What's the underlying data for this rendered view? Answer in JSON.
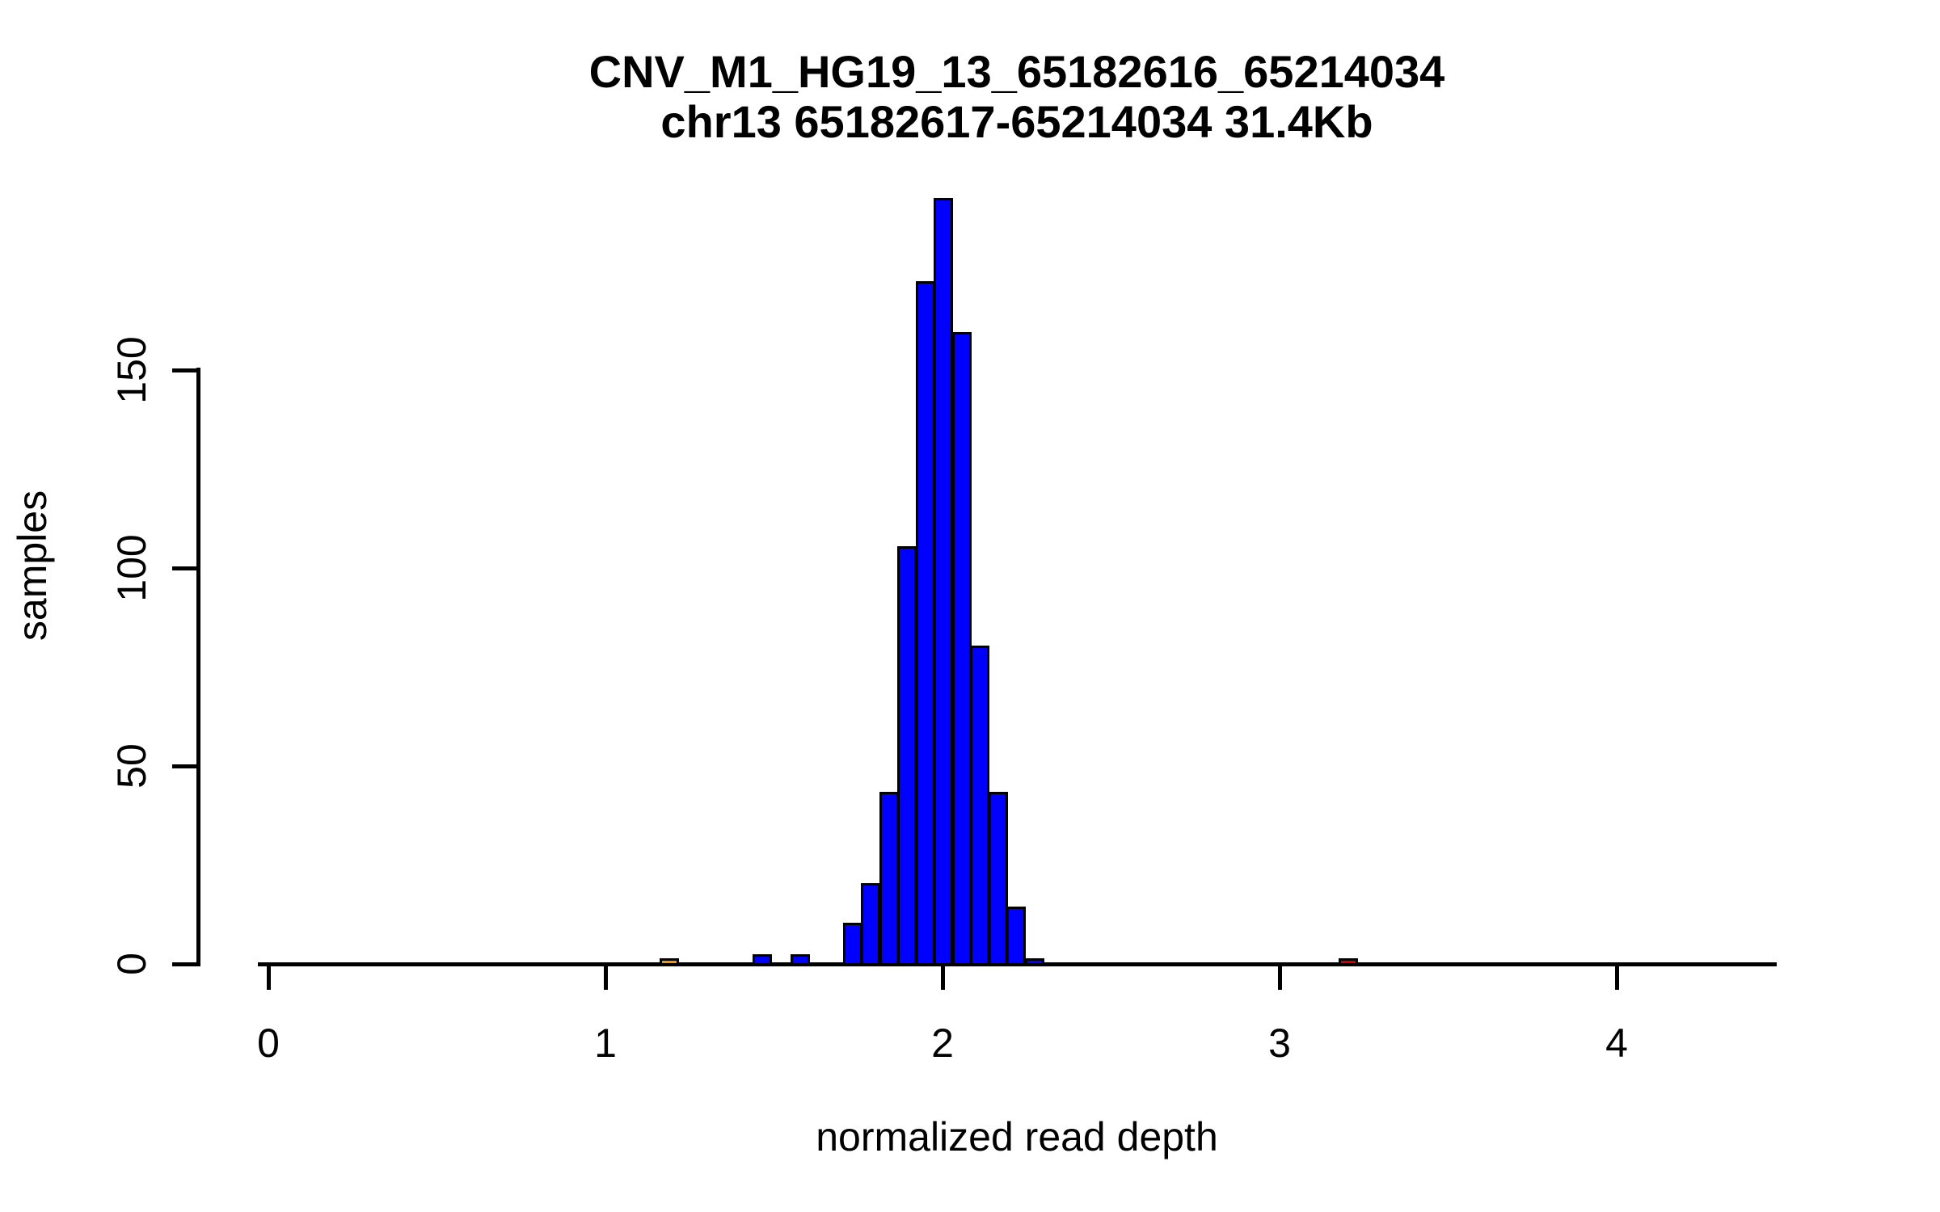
{
  "page": {
    "background": "#FFFFFF"
  },
  "chart_data": {
    "type": "bar",
    "subtype": "histogram",
    "title_line1": "CNV_M1_HG19_13_65182616_65214034",
    "title_line2": "chr13 65182617-65214034 31.4Kb",
    "xlabel": "normalized read depth",
    "ylabel": "samples",
    "x_tick_labels": [
      "0",
      "1",
      "2",
      "3",
      "4"
    ],
    "x_tick_values": [
      0,
      1,
      2,
      3,
      4
    ],
    "y_tick_labels": [
      "0",
      "50",
      "100",
      "150"
    ],
    "y_tick_values": [
      0,
      50,
      100,
      150
    ],
    "xlim": [
      -0.03,
      4.48
    ],
    "ylim": [
      0,
      195
    ],
    "bin_width": 0.054,
    "grid": false,
    "legend_position": "none",
    "colors": {
      "bar_fill": "#0000FF",
      "bar_stroke": "#000000",
      "axis": "#000000",
      "outlier_low_fill": "#E8960C",
      "outlier_high_fill": "#CC0000",
      "background": "#FFFFFF"
    },
    "bars": [
      {
        "x": 1.19,
        "count": 1,
        "color": "#E8960C"
      },
      {
        "x": 1.466,
        "count": 2,
        "color": "#0000FF"
      },
      {
        "x": 1.578,
        "count": 2,
        "color": "#0000FF"
      },
      {
        "x": 1.733,
        "count": 10,
        "color": "#0000FF"
      },
      {
        "x": 1.787,
        "count": 20,
        "color": "#0000FF"
      },
      {
        "x": 1.841,
        "count": 43,
        "color": "#0000FF"
      },
      {
        "x": 1.895,
        "count": 105,
        "color": "#0000FF"
      },
      {
        "x": 1.949,
        "count": 172,
        "color": "#0000FF"
      },
      {
        "x": 2.003,
        "count": 193,
        "color": "#0000FF"
      },
      {
        "x": 2.057,
        "count": 159,
        "color": "#0000FF"
      },
      {
        "x": 2.111,
        "count": 80,
        "color": "#0000FF"
      },
      {
        "x": 2.165,
        "count": 43,
        "color": "#0000FF"
      },
      {
        "x": 2.219,
        "count": 14,
        "color": "#0000FF"
      },
      {
        "x": 2.273,
        "count": 1,
        "color": "#0000FF"
      },
      {
        "x": 3.203,
        "count": 1,
        "color": "#CC0000"
      }
    ]
  }
}
